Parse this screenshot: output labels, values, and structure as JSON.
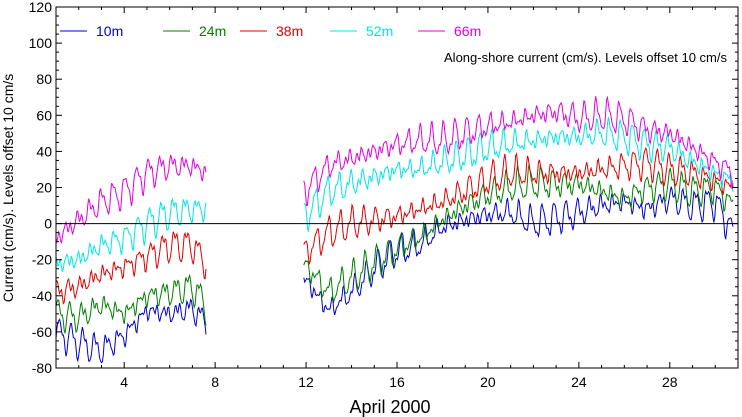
{
  "chart_data": {
    "type": "line",
    "xlabel": "April 2000",
    "ylabel": "Current (cm/s). Levels offset 10 cm/s",
    "annotation": "Along-shore current (cm/s). Levels offset 10 cm/s",
    "xlim": [
      1,
      31
    ],
    "ylim": [
      -80,
      120
    ],
    "xticks": [
      4,
      8,
      12,
      16,
      20,
      24,
      28
    ],
    "yticks": [
      -80,
      -60,
      -40,
      -20,
      0,
      20,
      40,
      60,
      80,
      100,
      120
    ],
    "zero_line": 0,
    "grid": false,
    "legend_position": "top-left",
    "data_gap": [
      7.6,
      11.9
    ],
    "series": [
      {
        "name": "10m",
        "color": "#0000cc",
        "x": [
          1,
          2,
          3,
          4,
          5,
          6,
          7,
          7.6,
          11.9,
          13,
          14,
          15,
          16,
          17,
          18,
          19,
          20,
          21,
          22,
          23,
          24,
          25,
          26,
          27,
          28,
          29,
          30,
          30.8
        ],
        "values": [
          -60,
          -66,
          -70,
          -62,
          -48,
          -50,
          -47,
          -55,
          -30,
          -48,
          -38,
          -25,
          -15,
          -12,
          -2,
          2,
          5,
          6,
          0,
          3,
          6,
          10,
          12,
          8,
          14,
          10,
          12,
          -5
        ]
      },
      {
        "name": "24m",
        "color": "#007f00",
        "x": [
          1,
          2,
          3,
          4,
          5,
          6,
          7,
          7.6,
          11.9,
          13,
          14,
          15,
          16,
          17,
          18,
          19,
          20,
          21,
          22,
          23,
          24,
          25,
          26,
          27,
          28,
          29,
          30,
          30.8
        ],
        "values": [
          -50,
          -52,
          -45,
          -50,
          -40,
          -38,
          -35,
          -45,
          -22,
          -38,
          -30,
          -22,
          -14,
          -8,
          2,
          10,
          16,
          20,
          22,
          22,
          22,
          18,
          14,
          20,
          22,
          18,
          20,
          10
        ]
      },
      {
        "name": "38m",
        "color": "#e00000",
        "x": [
          1,
          2,
          3,
          4,
          5,
          6,
          7,
          7.6,
          11.9,
          13,
          14,
          15,
          16,
          17,
          18,
          19,
          20,
          21,
          22,
          23,
          24,
          25,
          26,
          27,
          28,
          29,
          30,
          30.8
        ],
        "values": [
          -38,
          -35,
          -28,
          -24,
          -18,
          -12,
          -12,
          -22,
          -16,
          -5,
          0,
          2,
          4,
          8,
          12,
          18,
          24,
          28,
          28,
          28,
          28,
          30,
          32,
          34,
          30,
          28,
          24,
          20
        ]
      },
      {
        "name": "52m",
        "color": "#00e5e5",
        "x": [
          1,
          2,
          3,
          4,
          5,
          6,
          7,
          7.6,
          11.9,
          13,
          14,
          15,
          16,
          17,
          18,
          19,
          20,
          21,
          22,
          23,
          24,
          25,
          26,
          27,
          28,
          29,
          30,
          30.8
        ],
        "values": [
          -22,
          -20,
          -12,
          -8,
          0,
          6,
          8,
          8,
          4,
          18,
          22,
          26,
          30,
          30,
          34,
          38,
          42,
          44,
          46,
          48,
          48,
          50,
          48,
          44,
          42,
          34,
          28,
          24
        ]
      },
      {
        "name": "66m",
        "color": "#e000e0",
        "x": [
          1,
          2,
          3,
          4,
          5,
          6,
          7,
          7.6,
          11.9,
          13,
          14,
          15,
          16,
          17,
          18,
          19,
          20,
          21,
          22,
          23,
          24,
          25,
          26,
          27,
          28,
          29,
          30,
          30.8
        ],
        "values": [
          -8,
          2,
          12,
          18,
          28,
          32,
          32,
          28,
          18,
          32,
          36,
          40,
          44,
          46,
          46,
          50,
          54,
          56,
          60,
          62,
          58,
          60,
          58,
          52,
          50,
          42,
          34,
          28
        ]
      }
    ]
  }
}
